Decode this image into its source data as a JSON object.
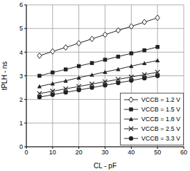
{
  "chart_data": {
    "type": "line",
    "xlabel": "CL - pF",
    "ylabel": "tPLH - ns",
    "x": [
      5,
      10,
      15,
      20,
      25,
      30,
      35,
      40,
      45,
      50
    ],
    "xlim": [
      0,
      60
    ],
    "xticks": [
      0,
      10,
      20,
      30,
      40,
      50,
      60
    ],
    "ylim": [
      0,
      6
    ],
    "yticks": [
      0,
      1,
      2,
      3,
      4,
      5,
      6
    ],
    "grid": true,
    "legend": "lower right",
    "series": [
      {
        "name": "VCCB = 1.2 V",
        "color": "#222222",
        "marker": "diamond",
        "values": [
          3.85,
          4.03,
          4.2,
          4.38,
          4.56,
          4.74,
          4.92,
          5.09,
          5.27,
          5.45
        ]
      },
      {
        "name": "VCCB = 1.5 V",
        "color": "#222222",
        "marker": "square",
        "values": [
          3.0,
          3.14,
          3.27,
          3.41,
          3.54,
          3.68,
          3.81,
          3.95,
          4.08,
          4.22
        ]
      },
      {
        "name": "VCCB = 1.8 V",
        "color": "#222222",
        "marker": "triangle",
        "values": [
          2.55,
          2.67,
          2.79,
          2.92,
          3.04,
          3.16,
          3.28,
          3.41,
          3.53,
          3.65
        ]
      },
      {
        "name": "VCCB = 2.5 V",
        "color": "#222222",
        "marker": "x",
        "values": [
          2.25,
          2.35,
          2.45,
          2.55,
          2.65,
          2.75,
          2.85,
          2.95,
          3.05,
          3.15
        ]
      },
      {
        "name": "VCCB = 3.3 V",
        "color": "#222222",
        "marker": "circle",
        "values": [
          2.1,
          2.2,
          2.3,
          2.4,
          2.5,
          2.6,
          2.7,
          2.8,
          2.9,
          3.0
        ]
      }
    ]
  }
}
